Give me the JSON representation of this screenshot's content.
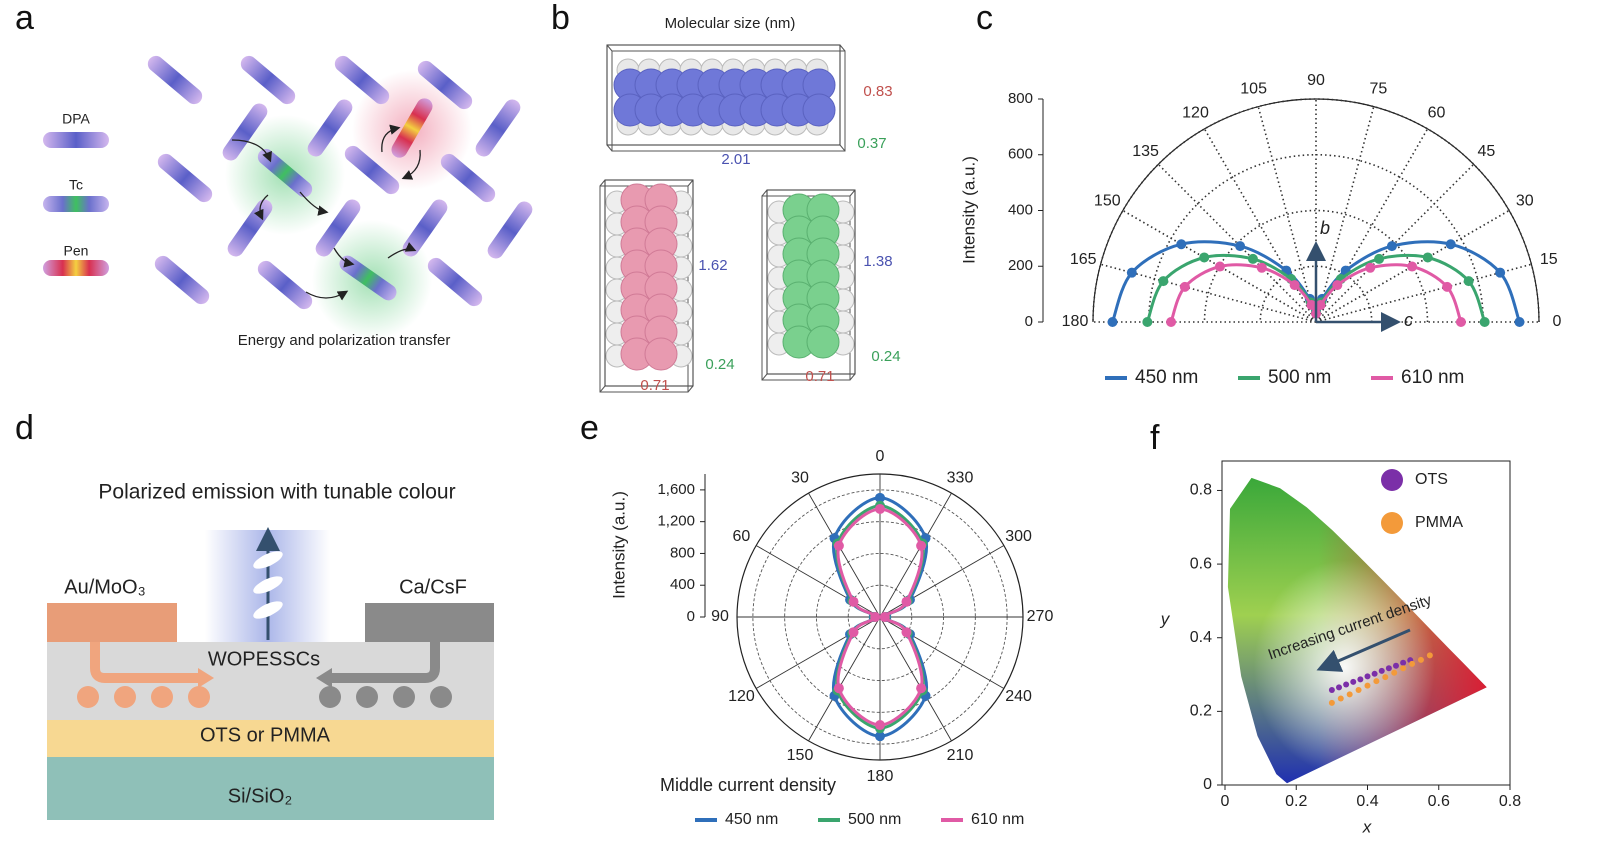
{
  "panel_labels": [
    "a",
    "b",
    "c",
    "d",
    "e",
    "f"
  ],
  "panel_a": {
    "molecules": [
      "DPA",
      "Tc",
      "Pen"
    ],
    "caption": "Energy and polarization transfer"
  },
  "panel_b": {
    "title": "Molecular size (nm)",
    "dimensions": [
      [
        0.83,
        0.37,
        2.01
      ],
      [
        1.62,
        0.24,
        0.71
      ],
      [
        1.38,
        0.24,
        0.71
      ]
    ]
  },
  "panel_d": {
    "title": "Polarized emission with tunable colour",
    "anode": "Au/MoO₃",
    "cathode": "Ca/CsF",
    "channel": "WOPESSCs",
    "dielectric": "OTS or PMMA",
    "substrate": "Si/SiO₂"
  },
  "chart_data": [
    {
      "type": "polar",
      "theta_zero": "right",
      "y_label": "Intensity (a.u.)",
      "annotations": [
        "b",
        "c"
      ],
      "x": [
        0,
        15,
        30,
        45,
        60,
        75,
        90,
        105,
        120,
        135,
        150,
        165,
        180
      ],
      "xlim": [
        0,
        180
      ],
      "xticks": [
        0,
        15,
        30,
        45,
        60,
        75,
        90,
        105,
        120,
        135,
        150,
        165,
        180
      ],
      "ylim": [
        0,
        800
      ],
      "yticks": [
        0,
        200,
        400,
        600,
        800
      ],
      "series": [
        {
          "name": "450 nm",
          "color": "#2f6fba",
          "values": [
            730,
            684,
            558,
            385,
            213,
            86,
            40,
            86,
            213,
            385,
            558,
            684,
            730
          ]
        },
        {
          "name": "500 nm",
          "color": "#3aa56e",
          "values": [
            605,
            567,
            463,
            320,
            178,
            73,
            35,
            73,
            178,
            320,
            463,
            567,
            605
          ]
        },
        {
          "name": "610 nm",
          "color": "#e05aa5",
          "values": [
            520,
            487,
            398,
            275,
            153,
            63,
            30,
            63,
            153,
            275,
            398,
            487,
            520
          ]
        }
      ]
    },
    {
      "type": "polar",
      "theta_zero": "top",
      "y_label": "Intensity (a.u.)",
      "annotations": [
        "Middle current density"
      ],
      "x": [
        0,
        30,
        60,
        90,
        120,
        150,
        180,
        210,
        240,
        270,
        300,
        330
      ],
      "xlim": [
        0,
        360
      ],
      "xticks": [
        0,
        30,
        60,
        90,
        120,
        150,
        180,
        210,
        240,
        270,
        300,
        330
      ],
      "ylim": [
        0,
        1800
      ],
      "yticks": [
        0,
        400,
        800,
        {
          "value": 1200,
          "label": "1,200"
        },
        {
          "value": 1600,
          "label": "1,600"
        }
      ],
      "series": [
        {
          "name": "450 nm",
          "color": "#2f6fba",
          "values": [
            1500,
            1145,
            435,
            80,
            435,
            1145,
            1500,
            1145,
            435,
            80,
            435,
            1145
          ]
        },
        {
          "name": "500 nm",
          "color": "#3aa56e",
          "values": [
            1400,
            1068,
            403,
            70,
            403,
            1068,
            1400,
            1068,
            403,
            70,
            403,
            1068
          ]
        },
        {
          "name": "610 nm",
          "color": "#e05aa5",
          "values": [
            1360,
            1035,
            385,
            60,
            385,
            1035,
            1360,
            1035,
            385,
            60,
            385,
            1035
          ]
        }
      ]
    },
    {
      "type": "scatter",
      "x_label": "x",
      "y_label": "y",
      "annotations": [
        "Increasing current density"
      ],
      "legend": "upper right",
      "xlim": [
        0,
        0.8
      ],
      "xticks": [
        0,
        0.2,
        0.4,
        0.6,
        0.8
      ],
      "ylim": [
        0,
        0.88
      ],
      "yticks": [
        0,
        0.2,
        0.4,
        0.6,
        0.8
      ],
      "series": [
        {
          "name": "OTS",
          "color": "#7b2fa8",
          "x": [
            0.3,
            0.32,
            0.34,
            0.36,
            0.38,
            0.4,
            0.42,
            0.44,
            0.46,
            0.48,
            0.5,
            0.52
          ],
          "values": [
            0.258,
            0.265,
            0.273,
            0.28,
            0.287,
            0.295,
            0.302,
            0.31,
            0.317,
            0.324,
            0.332,
            0.339
          ]
        },
        {
          "name": "PMMA",
          "color": "#f39a3a",
          "x": [
            0.3,
            0.325,
            0.35,
            0.375,
            0.4,
            0.425,
            0.45,
            0.475,
            0.5,
            0.525,
            0.55,
            0.575
          ],
          "values": [
            0.223,
            0.235,
            0.246,
            0.258,
            0.27,
            0.282,
            0.293,
            0.305,
            0.317,
            0.329,
            0.34,
            0.352
          ]
        }
      ]
    }
  ]
}
